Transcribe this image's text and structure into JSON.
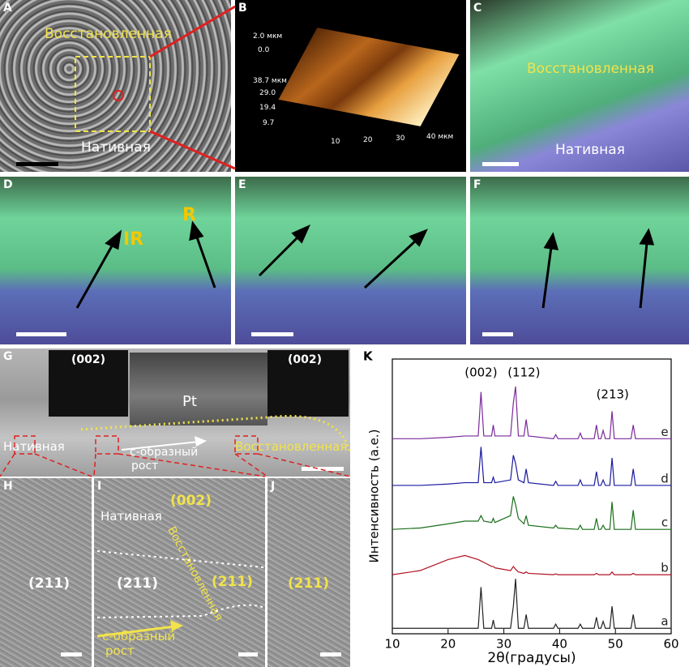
{
  "panels": {
    "A": {
      "label": "A",
      "top": "Восстановленная",
      "bottom": "Нативная"
    },
    "B": {
      "label": "B",
      "z_labels": [
        "2.0 мкм",
        "0.0"
      ],
      "y_labels": [
        "38.7 мкм",
        "29.0",
        "19.4",
        "9.7"
      ],
      "x_labels": [
        "10",
        "20",
        "30",
        "40 мкм"
      ]
    },
    "C": {
      "label": "C",
      "top": "Восстановленная",
      "bottom": "Нативная"
    },
    "D": {
      "label": "D",
      "ir": "IR",
      "r": "R"
    },
    "E": {
      "label": "E"
    },
    "F": {
      "label": "F"
    },
    "G": {
      "label": "G",
      "saed_left": "(002)",
      "saed_right": "(002)",
      "pt": "Pt",
      "native": "Нативная",
      "growth": [
        "c-образный",
        "рост"
      ],
      "restored": "Восстановленная"
    },
    "H": {
      "label": "H",
      "plane": "(211)"
    },
    "I": {
      "label": "I",
      "native": "Нативная",
      "plane_left": "(211)",
      "plane_right": "(211)",
      "plane_top": "(002)",
      "restored": "Восстановленная",
      "growth": [
        "c-образный",
        "рост"
      ]
    },
    "J": {
      "label": "J",
      "plane": "(211)"
    }
  },
  "chart_data": {
    "type": "line",
    "panel_label": "K",
    "x_label": "2θ(градусы)",
    "y_label": "Интенсивность (a.e.)",
    "xlim": [
      10,
      60
    ],
    "xticks": [
      10,
      20,
      30,
      40,
      50,
      60
    ],
    "ylim": [
      0,
      100
    ],
    "x": [
      10,
      15,
      20,
      23,
      25.4,
      25.9,
      26.4,
      27.8,
      28.1,
      28.4,
      31.2,
      31.7,
      32.1,
      32.6,
      33.6,
      34.0,
      34.4,
      38.9,
      39.3,
      39.7,
      43.3,
      43.7,
      44.1,
      46.2,
      46.6,
      47.0,
      47.4,
      47.8,
      48.2,
      49.0,
      49.4,
      49.8,
      52.8,
      53.2,
      53.6,
      56,
      60
    ],
    "series": [
      {
        "name": "a",
        "color": "#222222",
        "values": [
          2,
          2,
          2,
          2,
          2,
          17,
          2,
          2,
          5,
          2,
          2,
          10,
          20,
          2,
          2,
          7,
          2,
          2,
          3.5,
          2,
          2,
          3.5,
          2,
          2,
          6,
          2,
          2,
          4.5,
          2,
          2,
          10,
          2,
          2,
          7,
          2,
          2,
          2
        ]
      },
      {
        "name": "b",
        "color": "#b01020",
        "values": [
          21.5,
          23,
          27,
          28.5,
          27,
          26.5,
          26,
          24.5,
          24.5,
          24,
          23,
          24.5,
          23.5,
          22.5,
          22,
          22.5,
          22,
          21.5,
          21.8,
          21.5,
          21.5,
          21.5,
          21.5,
          21.5,
          22,
          21.5,
          21.5,
          21.5,
          21.5,
          21.5,
          22.5,
          21.5,
          21.5,
          22,
          21.5,
          21.5,
          21.5
        ]
      },
      {
        "name": "c",
        "color": "#1a6e1a",
        "values": [
          38,
          38.5,
          40,
          41,
          41,
          43,
          41,
          40.5,
          42,
          40.5,
          43,
          50,
          47,
          42,
          40,
          43,
          39.5,
          38.5,
          39.5,
          38.5,
          38,
          39.5,
          38,
          38,
          42,
          38,
          38,
          39.5,
          38,
          38,
          48,
          38,
          38,
          45,
          38,
          38,
          38
        ]
      },
      {
        "name": "d",
        "color": "#1a1aa0",
        "values": [
          54,
          54,
          54.5,
          55,
          55,
          68,
          55,
          55,
          57,
          55,
          56,
          65,
          62,
          56,
          55,
          60,
          55,
          54,
          55.5,
          54,
          54,
          56,
          54,
          54,
          59,
          54,
          54,
          56,
          54,
          54,
          64,
          54,
          54,
          60,
          54,
          54,
          54
        ]
      },
      {
        "name": "e",
        "color": "#7a2a9a",
        "values": [
          71,
          71,
          71.5,
          72,
          72,
          88,
          72,
          72,
          76,
          72,
          72,
          84,
          90,
          72,
          72,
          78,
          72,
          71,
          72.5,
          71,
          71,
          73,
          71,
          71,
          76,
          71,
          71,
          74,
          71,
          71,
          81,
          71,
          71,
          76,
          71,
          71,
          71
        ]
      }
    ],
    "annotations": [
      {
        "text": "(002)",
        "x": 25.9,
        "y": 95
      },
      {
        "text": "(112)",
        "x": 33.6,
        "y": 95
      },
      {
        "text": "(213)",
        "x": 49.5,
        "y": 87
      }
    ]
  }
}
